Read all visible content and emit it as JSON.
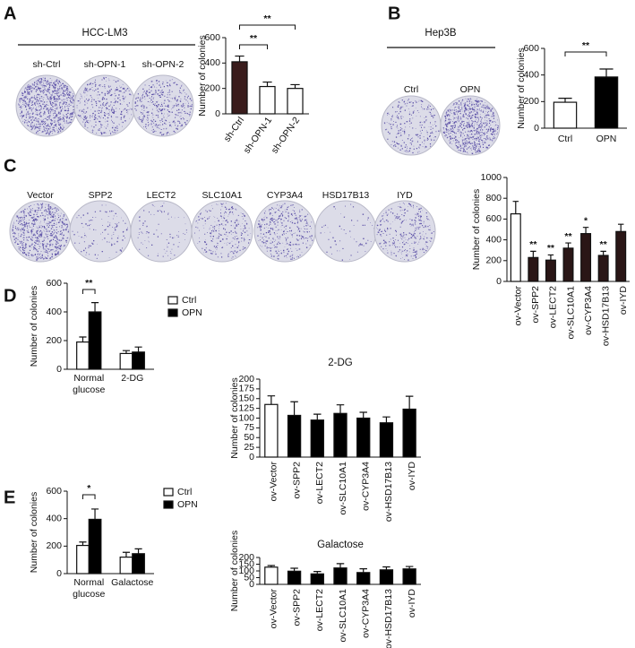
{
  "figure": {
    "panels": [
      "A",
      "B",
      "C",
      "D",
      "E"
    ],
    "images": [
      {
        "group": "HCC-LM3",
        "labels": [
          "sh-Ctrl",
          "sh-OPN-1",
          "sh-OPN-2"
        ]
      },
      {
        "group": "Hep3B",
        "labels": [
          "Ctrl",
          "OPN"
        ]
      },
      {
        "labels": [
          "Vector",
          "SPP2",
          "LECT2",
          "SLC10A1",
          "CYP3A4",
          "HSD17B13",
          "IYD"
        ]
      }
    ]
  },
  "chart_data": [
    {
      "type": "bar",
      "ylabel": "Number of colonies",
      "categories": [
        "sh-Ctrl",
        "sh-OPN-1",
        "sh-OPN-2"
      ],
      "values": [
        410,
        215,
        200
      ],
      "errors": [
        45,
        35,
        30
      ],
      "colors": [
        "#3a1c1c",
        "#ffffff",
        "#ffffff"
      ],
      "ylim": [
        0,
        600
      ],
      "yticks": [
        0,
        200,
        400,
        600
      ],
      "annotations": [
        "**",
        "**"
      ]
    },
    {
      "type": "bar",
      "ylabel": "Number of colonies",
      "categories": [
        "Ctrl",
        "OPN"
      ],
      "values": [
        195,
        385
      ],
      "errors": [
        30,
        60
      ],
      "colors": [
        "#ffffff",
        "#000000"
      ],
      "ylim": [
        0,
        600
      ],
      "yticks": [
        0,
        200,
        400,
        600
      ],
      "annotations": [
        "**"
      ]
    },
    {
      "type": "bar",
      "ylabel": "Number of colonies",
      "categories": [
        "ov-Vector",
        "ov-SPP2",
        "ov-LECT2",
        "ov-SLC10A1",
        "ov-CYP3A4",
        "ov-HSD17B13",
        "ov-IYD"
      ],
      "values": [
        650,
        230,
        205,
        320,
        460,
        250,
        480
      ],
      "errors": [
        120,
        60,
        50,
        50,
        60,
        40,
        70
      ],
      "colors": [
        "#ffffff",
        "#2a1616",
        "#2a1616",
        "#2a1616",
        "#2a1616",
        "#2a1616",
        "#2a1616"
      ],
      "ylim": [
        0,
        1000
      ],
      "yticks": [
        0,
        200,
        400,
        600,
        800,
        1000
      ],
      "annotations": [
        null,
        "**",
        "**",
        "**",
        "*",
        "**",
        null
      ]
    },
    {
      "type": "grouped-bar",
      "ylabel": "Number of colonies",
      "categories": [
        "Normal glucose",
        "2-DG"
      ],
      "series": [
        {
          "name": "Ctrl",
          "color": "#ffffff",
          "values": [
            190,
            110
          ],
          "errors": [
            35,
            20
          ]
        },
        {
          "name": "OPN",
          "color": "#000000",
          "values": [
            400,
            120
          ],
          "errors": [
            65,
            35
          ]
        }
      ],
      "ylim": [
        0,
        600
      ],
      "yticks": [
        0,
        200,
        400,
        600
      ],
      "annotations": [
        "**"
      ]
    },
    {
      "type": "bar",
      "title": "2-DG",
      "ylabel": "Number of colonies",
      "categories": [
        "ov-Vector",
        "ov-SPP2",
        "ov-LECT2",
        "ov-SLC10A1",
        "ov-CYP3A4",
        "ov-HSD17B13",
        "ov-IYD"
      ],
      "values": [
        135,
        107,
        95,
        112,
        100,
        88,
        123
      ],
      "errors": [
        22,
        35,
        15,
        22,
        15,
        15,
        33
      ],
      "colors": [
        "#ffffff",
        "#000000",
        "#000000",
        "#000000",
        "#000000",
        "#000000",
        "#000000"
      ],
      "ylim": [
        0,
        200
      ],
      "yticks": [
        0,
        25,
        50,
        75,
        100,
        125,
        150,
        175,
        200
      ]
    },
    {
      "type": "grouped-bar",
      "ylabel": "Number of colonies",
      "categories": [
        "Normal glucose",
        "Galactose"
      ],
      "series": [
        {
          "name": "Ctrl",
          "color": "#ffffff",
          "values": [
            205,
            120
          ],
          "errors": [
            25,
            35
          ]
        },
        {
          "name": "OPN",
          "color": "#000000",
          "values": [
            395,
            145
          ],
          "errors": [
            75,
            35
          ]
        }
      ],
      "ylim": [
        0,
        600
      ],
      "yticks": [
        0,
        200,
        400,
        600
      ],
      "annotations": [
        "*"
      ]
    },
    {
      "type": "bar",
      "title": "Galactose",
      "ylabel": "Number of colonies",
      "categories": [
        "ov-Vector",
        "ov-SPP2",
        "ov-LECT2",
        "ov-SLC10A1",
        "ov-CYP3A4",
        "ov-HSD17B13",
        "ov-IYD"
      ],
      "values": [
        128,
        98,
        78,
        122,
        88,
        108,
        115
      ],
      "errors": [
        12,
        22,
        18,
        32,
        28,
        22,
        18
      ],
      "colors": [
        "#ffffff",
        "#000000",
        "#000000",
        "#000000",
        "#000000",
        "#000000",
        "#000000"
      ],
      "ylim": [
        0,
        200
      ],
      "yticks": [
        0,
        50,
        100,
        150,
        200
      ]
    }
  ]
}
